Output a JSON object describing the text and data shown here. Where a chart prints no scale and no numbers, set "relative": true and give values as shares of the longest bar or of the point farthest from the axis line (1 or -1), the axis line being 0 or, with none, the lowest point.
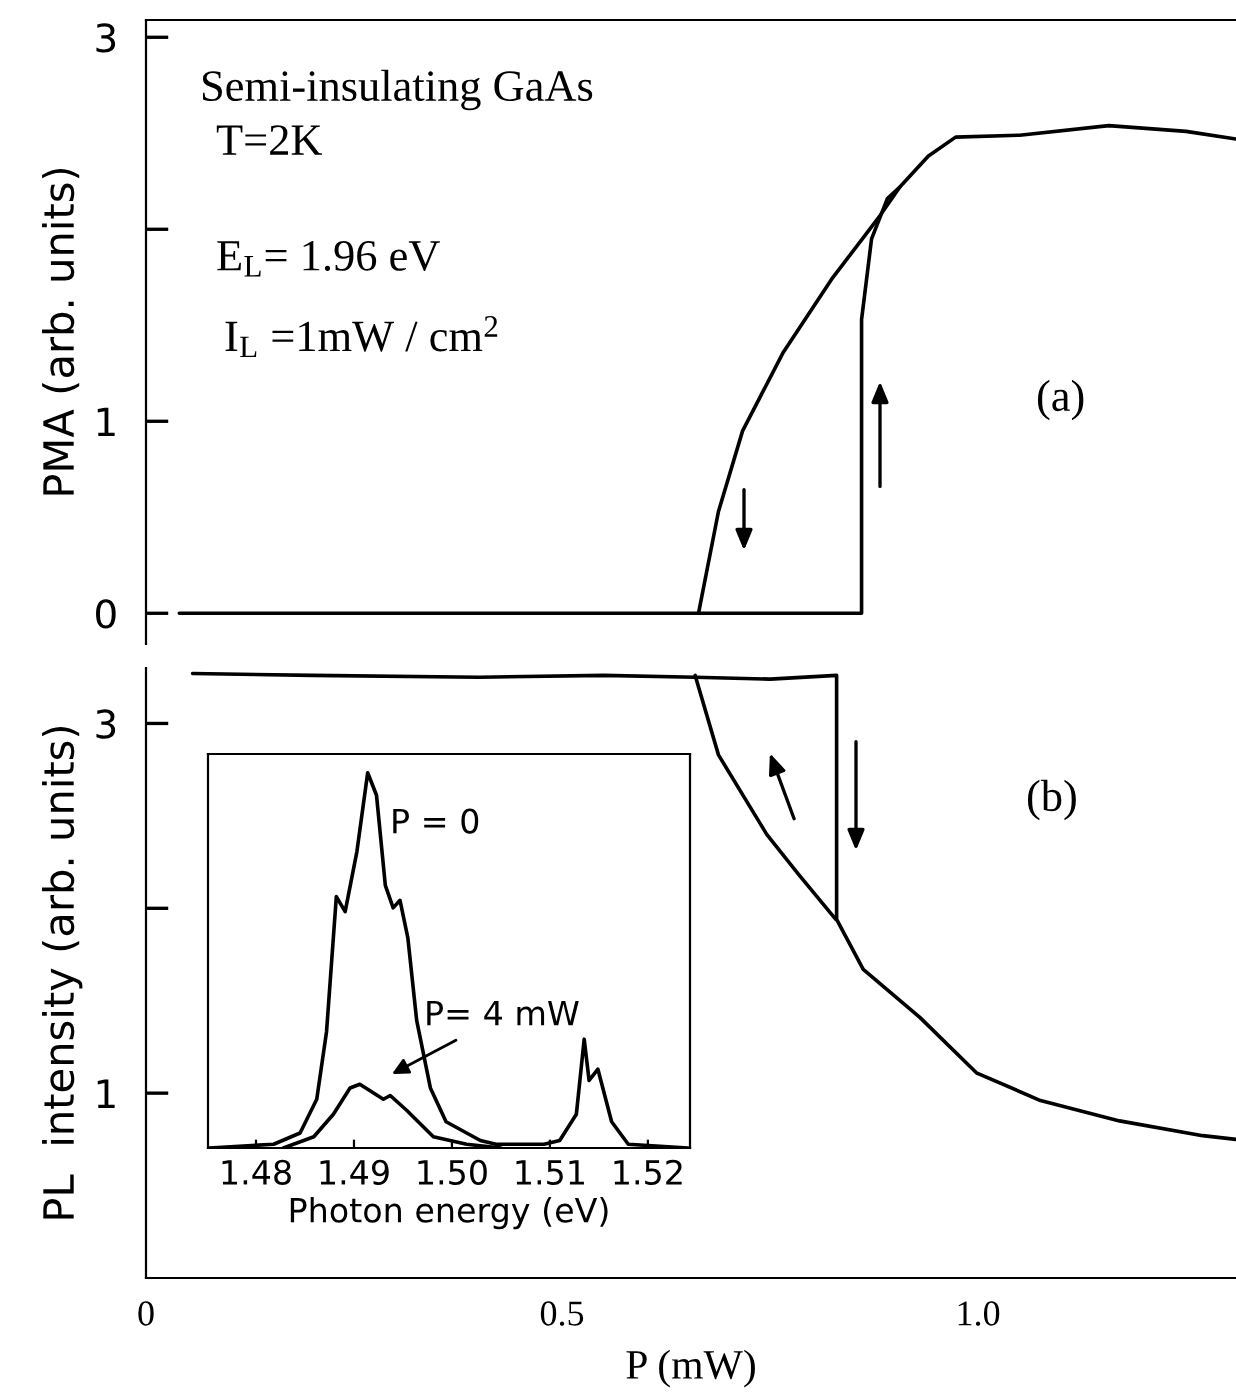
{
  "chart_data": [
    {
      "type": "line",
      "ylabel": "PMA (arb. units)",
      "tick_labels": "y",
      "xlim": [
        0,
        1.31
      ],
      "ylim": [
        -0.16,
        3.09
      ],
      "yticks": [
        0,
        1,
        {
          "value": 2,
          "label": null
        },
        3
      ],
      "annotations": [
        "Semi-insulating GaAs",
        "T=2K",
        "E$_{L}$= 1.96 eV",
        "I$_{L}$ =1mW / cm$^{2}$",
        "(a)"
      ],
      "series": [
        {
          "color": "#000000",
          "x": [
            0.04,
            0.86,
            0.86,
            0.872,
            0.891,
            0.906,
            0.94,
            0.973,
            1.05,
            1.157,
            1.25,
            1.31
          ],
          "values": [
            0,
            0,
            1.53,
            1.95,
            2.16,
            2.22,
            2.38,
            2.48,
            2.49,
            2.54,
            2.51,
            2.47
          ]
        },
        {
          "color": "#000000",
          "x": [
            0.906,
            0.882,
            0.824,
            0.766,
            0.717,
            0.688,
            0.664
          ],
          "values": [
            2.22,
            2.07,
            1.74,
            1.36,
            0.95,
            0.53,
            0
          ]
        }
      ]
    },
    {
      "type": "line",
      "ylabel": "PL  intensity (arb. units)",
      "xlabel": "P (mW)",
      "xlim": [
        0,
        1.31
      ],
      "ylim": [
        0,
        3.3
      ],
      "xticks": [
        0,
        0.5,
        {
          "value": 1.0,
          "label": "1.0"
        }
      ],
      "yticks": [
        1,
        {
          "value": 2,
          "label": null
        },
        3
      ],
      "annotations": [
        "(b)"
      ],
      "series": [
        {
          "color": "#000000",
          "x": [
            0.056,
            0.2,
            0.4,
            0.55,
            0.66,
            0.75,
            0.83,
            0.83,
            0.862,
            0.93,
            0.998,
            1.075,
            1.17,
            1.27,
            1.31
          ],
          "values": [
            3.27,
            3.26,
            3.25,
            3.26,
            3.25,
            3.24,
            3.26,
            1.94,
            1.67,
            1.41,
            1.11,
            0.96,
            0.85,
            0.77,
            0.75
          ]
        },
        {
          "color": "#000000",
          "x": [
            0.829,
            0.785,
            0.746,
            0.688,
            0.66
          ],
          "values": [
            1.94,
            2.18,
            2.4,
            2.83,
            3.26
          ]
        }
      ]
    },
    {
      "type": "line",
      "relative": true,
      "xlabel": "Photon energy (eV)",
      "tick_labels": "x",
      "xlim": [
        1.4751,
        1.5243
      ],
      "xticks": [
        1.48,
        1.49,
        {
          "value": 1.5,
          "label": "1.50"
        },
        1.51,
        1.52
      ],
      "series": [
        {
          "name": "P = 0",
          "color": "#000000",
          "x": [
            1.4752,
            1.4818,
            1.4845,
            1.4862,
            1.4872,
            1.4882,
            1.4891,
            1.4903,
            1.4914,
            1.4923,
            1.4932,
            1.494,
            1.4947,
            1.4955,
            1.4964,
            1.4978,
            1.4994,
            1.5029,
            1.5045,
            1.5094,
            1.511,
            1.5127,
            1.5135,
            1.514,
            1.5149,
            1.5163,
            1.518,
            1.5241
          ],
          "values": [
            0,
            0.01,
            0.04,
            0.13,
            0.31,
            0.67,
            0.63,
            0.79,
            1.0,
            0.94,
            0.7,
            0.64,
            0.66,
            0.56,
            0.34,
            0.16,
            0.07,
            0.02,
            0.01,
            0.01,
            0.02,
            0.09,
            0.29,
            0.18,
            0.21,
            0.07,
            0.01,
            0
          ]
        },
        {
          "name": "P= 4 mW",
          "color": "#000000",
          "x": [
            1.4828,
            1.4859,
            1.4879,
            1.4896,
            1.4906,
            1.4918,
            1.493,
            1.4937,
            1.4954,
            1.4981,
            1.5015,
            1.505
          ],
          "values": [
            0,
            0.03,
            0.09,
            0.16,
            0.17,
            0.15,
            0.13,
            0.14,
            0.1,
            0.03,
            0.01,
            0
          ]
        }
      ]
    }
  ]
}
